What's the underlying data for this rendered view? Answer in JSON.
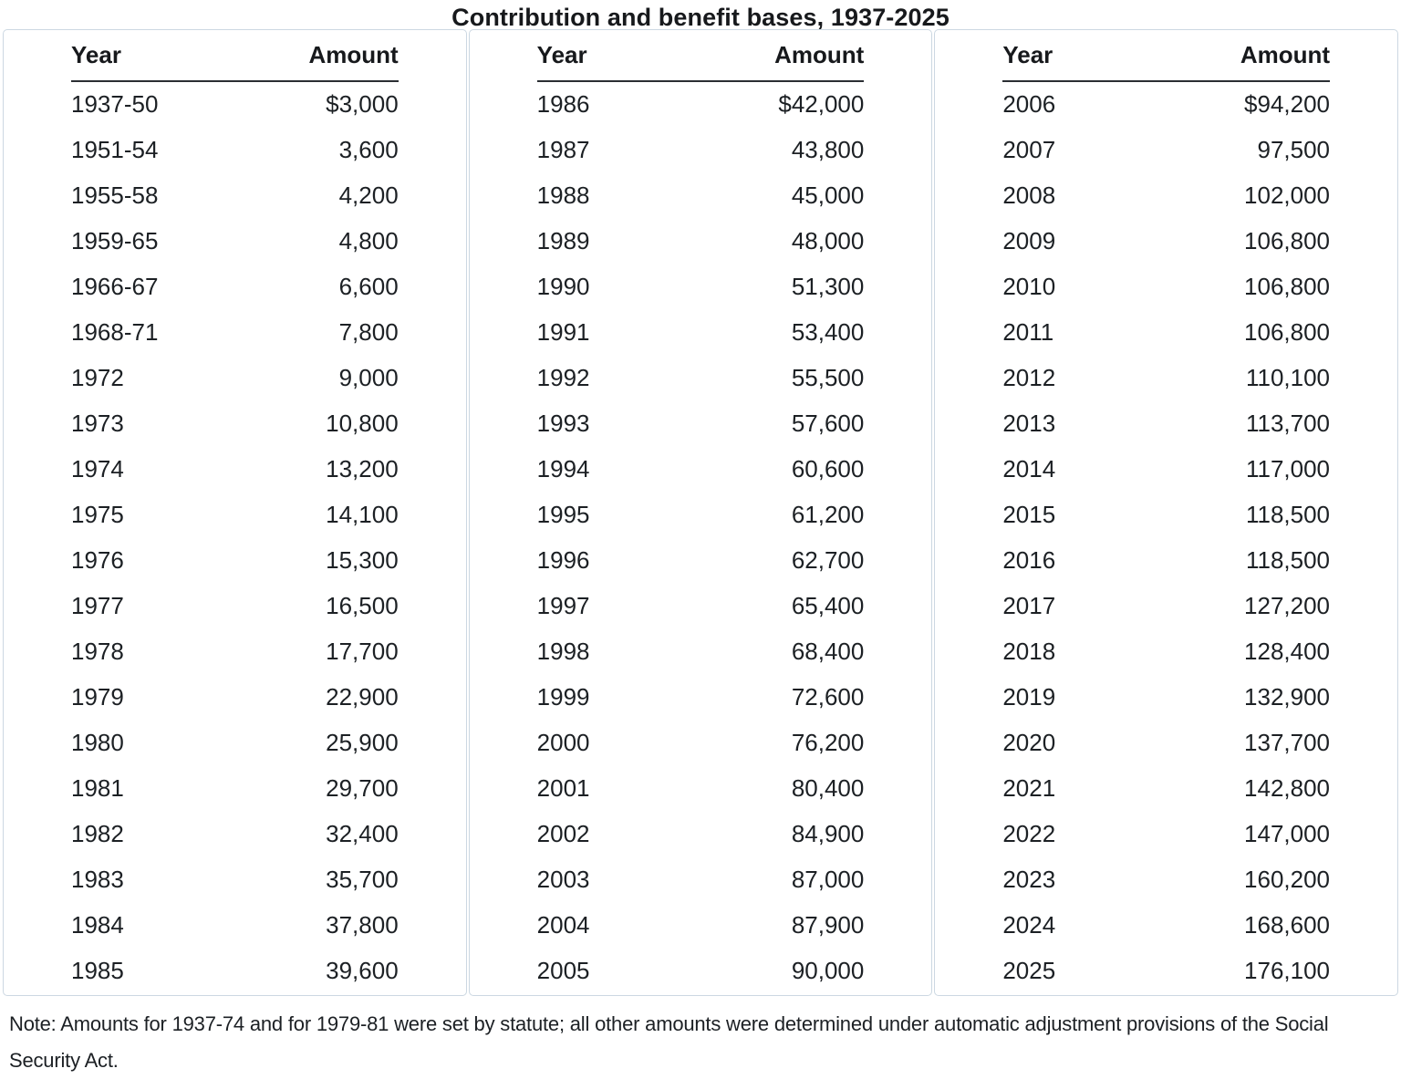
{
  "title": "Contribution and benefit bases, 1937-2025",
  "note": "Note: Amounts for 1937-74 and for 1979-81 were set by statute; all other amounts were determined under automatic adjustment provisions of the Social Security Act.",
  "colors": {
    "background": "#ffffff",
    "text": "#1c2024",
    "panel_border": "#ccd8e2",
    "header_rule": "#2a2e33"
  },
  "chart_data": {
    "type": "table",
    "title": "Contribution and benefit bases, 1937-2025",
    "columns": [
      "Year",
      "Amount"
    ],
    "layout": "three side-by-side panels, Year left-aligned, Amount right-aligned, dollar sign only on first row of each panel",
    "panels": [
      {
        "rows": [
          [
            "1937-50",
            "$3,000"
          ],
          [
            "1951-54",
            "3,600"
          ],
          [
            "1955-58",
            "4,200"
          ],
          [
            "1959-65",
            "4,800"
          ],
          [
            "1966-67",
            "6,600"
          ],
          [
            "1968-71",
            "7,800"
          ],
          [
            "1972",
            "9,000"
          ],
          [
            "1973",
            "10,800"
          ],
          [
            "1974",
            "13,200"
          ],
          [
            "1975",
            "14,100"
          ],
          [
            "1976",
            "15,300"
          ],
          [
            "1977",
            "16,500"
          ],
          [
            "1978",
            "17,700"
          ],
          [
            "1979",
            "22,900"
          ],
          [
            "1980",
            "25,900"
          ],
          [
            "1981",
            "29,700"
          ],
          [
            "1982",
            "32,400"
          ],
          [
            "1983",
            "35,700"
          ],
          [
            "1984",
            "37,800"
          ],
          [
            "1985",
            "39,600"
          ]
        ]
      },
      {
        "rows": [
          [
            "1986",
            "$42,000"
          ],
          [
            "1987",
            "43,800"
          ],
          [
            "1988",
            "45,000"
          ],
          [
            "1989",
            "48,000"
          ],
          [
            "1990",
            "51,300"
          ],
          [
            "1991",
            "53,400"
          ],
          [
            "1992",
            "55,500"
          ],
          [
            "1993",
            "57,600"
          ],
          [
            "1994",
            "60,600"
          ],
          [
            "1995",
            "61,200"
          ],
          [
            "1996",
            "62,700"
          ],
          [
            "1997",
            "65,400"
          ],
          [
            "1998",
            "68,400"
          ],
          [
            "1999",
            "72,600"
          ],
          [
            "2000",
            "76,200"
          ],
          [
            "2001",
            "80,400"
          ],
          [
            "2002",
            "84,900"
          ],
          [
            "2003",
            "87,000"
          ],
          [
            "2004",
            "87,900"
          ],
          [
            "2005",
            "90,000"
          ]
        ]
      },
      {
        "rows": [
          [
            "2006",
            "$94,200"
          ],
          [
            "2007",
            "97,500"
          ],
          [
            "2008",
            "102,000"
          ],
          [
            "2009",
            "106,800"
          ],
          [
            "2010",
            "106,800"
          ],
          [
            "2011",
            "106,800"
          ],
          [
            "2012",
            "110,100"
          ],
          [
            "2013",
            "113,700"
          ],
          [
            "2014",
            "117,000"
          ],
          [
            "2015",
            "118,500"
          ],
          [
            "2016",
            "118,500"
          ],
          [
            "2017",
            "127,200"
          ],
          [
            "2018",
            "128,400"
          ],
          [
            "2019",
            "132,900"
          ],
          [
            "2020",
            "137,700"
          ],
          [
            "2021",
            "142,800"
          ],
          [
            "2022",
            "147,000"
          ],
          [
            "2023",
            "160,200"
          ],
          [
            "2024",
            "168,600"
          ],
          [
            "2025",
            "176,100"
          ]
        ]
      }
    ]
  }
}
